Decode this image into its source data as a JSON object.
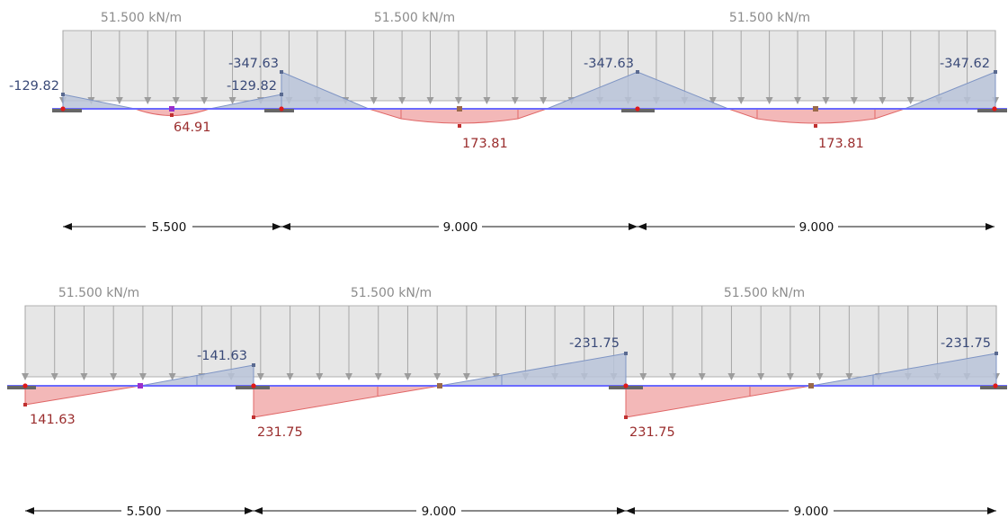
{
  "diagrams": [
    {
      "id": "moment",
      "load_label": "51.500 kN/m",
      "spans": [
        "5.500",
        "9.000",
        "9.000"
      ],
      "values": {
        "support_1": "-129.82",
        "span_1_left": "-129.82",
        "span_1_mid": "64.91",
        "support_2": "-347.63",
        "span_2_mid": "173.81",
        "support_3": "-347.63",
        "span_3_mid": "173.81",
        "support_4": "-347.62"
      }
    },
    {
      "id": "shear",
      "load_label": "51.500 kN/m",
      "spans": [
        "5.500",
        "9.000",
        "9.000"
      ],
      "values": {
        "span_1_start": "141.63",
        "span_1_end": "-141.63",
        "span_2_start": "231.75",
        "span_2_end": "-231.75",
        "span_3_start": "231.75",
        "span_3_end": "-231.75"
      }
    }
  ],
  "colors": {
    "load_fill": "#e6e6e6",
    "load_stroke": "#a6a6a6",
    "negative_fill": "#b9c3d8",
    "negative_stroke": "#7f95c4",
    "positive_fill": "#f3b8b8",
    "positive_stroke": "#e06767",
    "beam": "#6b6bff",
    "support": "#666666",
    "node": "#e01919"
  }
}
